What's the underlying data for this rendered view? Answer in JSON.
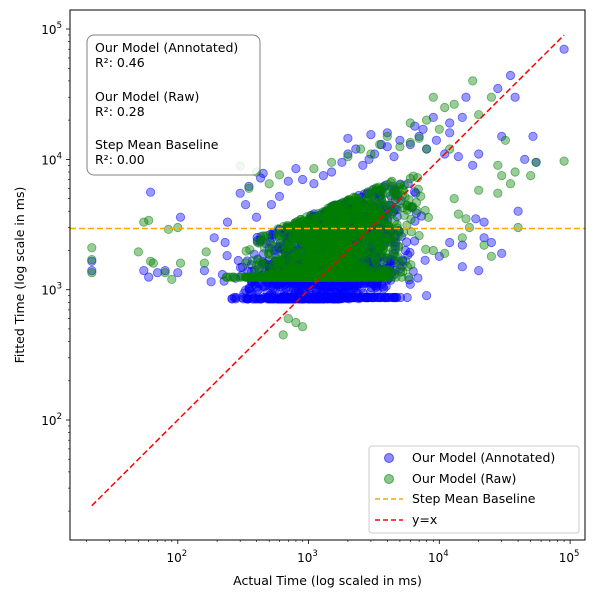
{
  "chart_data": {
    "type": "scatter",
    "title": "",
    "xlabel": "Actual Time (log scaled in ms)",
    "ylabel": "Fitted Time (log scale in ms)",
    "xscale": "log",
    "yscale": "log",
    "xlim": [
      15,
      130000
    ],
    "ylim": [
      12,
      140000
    ],
    "x_ticks": [
      {
        "value": 100,
        "base": "10",
        "exp": "2"
      },
      {
        "value": 1000,
        "base": "10",
        "exp": "3"
      },
      {
        "value": 10000,
        "base": "10",
        "exp": "4"
      },
      {
        "value": 100000,
        "base": "10",
        "exp": "5"
      }
    ],
    "y_ticks": [
      {
        "value": 100,
        "base": "10",
        "exp": "2"
      },
      {
        "value": 1000,
        "base": "10",
        "exp": "3"
      },
      {
        "value": 10000,
        "base": "10",
        "exp": "4"
      },
      {
        "value": 100000,
        "base": "10",
        "exp": "5"
      }
    ],
    "series": [
      {
        "name": "Our Model (Annotated)",
        "color": "#0000ff",
        "kind": "scatter",
        "points": [
          [
            22,
            1400
          ],
          [
            22,
            1650
          ],
          [
            55,
            1400
          ],
          [
            60,
            1250
          ],
          [
            62,
            5600
          ],
          [
            70,
            1350
          ],
          [
            80,
            1400
          ],
          [
            100,
            1350
          ],
          [
            105,
            3600
          ],
          [
            160,
            1400
          ],
          [
            180,
            1150
          ],
          [
            190,
            2500
          ],
          [
            230,
            2300
          ],
          [
            240,
            3300
          ],
          [
            300,
            5500
          ],
          [
            330,
            4500
          ],
          [
            350,
            6200
          ],
          [
            400,
            3600
          ],
          [
            430,
            7200
          ],
          [
            450,
            7800
          ],
          [
            520,
            4500
          ],
          [
            600,
            5200
          ],
          [
            700,
            6800
          ],
          [
            800,
            8500
          ],
          [
            900,
            7000
          ],
          [
            1100,
            6500
          ],
          [
            1300,
            7500
          ],
          [
            1500,
            8000
          ],
          [
            1800,
            9500
          ],
          [
            2000,
            11000
          ],
          [
            2300,
            12000
          ],
          [
            2600,
            9000
          ],
          [
            2900,
            10000
          ],
          [
            3200,
            11000
          ],
          [
            3600,
            13000
          ],
          [
            4000,
            12500
          ],
          [
            4500,
            10500
          ],
          [
            5000,
            14000
          ],
          [
            6000,
            13000
          ],
          [
            7000,
            15000
          ],
          [
            8000,
            12000
          ],
          [
            9500,
            14000
          ],
          [
            11000,
            11000
          ],
          [
            12000,
            16000
          ],
          [
            14000,
            10500
          ],
          [
            16000,
            30000
          ],
          [
            18000,
            9000
          ],
          [
            20000,
            11000
          ],
          [
            22000,
            2500
          ],
          [
            25000,
            2300
          ],
          [
            28000,
            35000
          ],
          [
            30000,
            15000
          ],
          [
            35000,
            44000
          ],
          [
            38000,
            30000
          ],
          [
            40000,
            4000
          ],
          [
            45000,
            10000
          ],
          [
            52000,
            15000
          ],
          [
            55000,
            9500
          ],
          [
            90000,
            70000
          ],
          [
            6500,
            18000
          ],
          [
            4000,
            16000
          ],
          [
            3000,
            15500
          ],
          [
            2000,
            14500
          ],
          [
            7500,
            17000
          ],
          [
            9000,
            21000
          ],
          [
            12000,
            19000
          ],
          [
            15000,
            21000
          ],
          [
            19000,
            3500
          ],
          [
            22000,
            3300
          ],
          [
            10000,
            1800
          ],
          [
            15000,
            2200
          ],
          [
            20000,
            1400
          ],
          [
            30000,
            1900
          ],
          [
            12000,
            2300
          ],
          [
            8000,
            900
          ],
          [
            6000,
            1100
          ],
          [
            15000,
            1500
          ],
          [
            5500,
            2000
          ]
        ],
        "cluster": {
          "x_range": [
            200,
            10000
          ],
          "y_range": [
            850,
            9000
          ],
          "count": 1500,
          "seed": 7
        }
      },
      {
        "name": "Our Model (Raw)",
        "color": "#008000",
        "kind": "scatter",
        "points": [
          [
            22,
            2100
          ],
          [
            22,
            1700
          ],
          [
            22,
            1350
          ],
          [
            50,
            1950
          ],
          [
            55,
            3300
          ],
          [
            60,
            3400
          ],
          [
            62,
            1650
          ],
          [
            65,
            1600
          ],
          [
            80,
            1350
          ],
          [
            85,
            2900
          ],
          [
            90,
            1200
          ],
          [
            100,
            3000
          ],
          [
            105,
            1600
          ],
          [
            160,
            1600
          ],
          [
            165,
            1950
          ],
          [
            300,
            8900
          ],
          [
            350,
            6000
          ],
          [
            400,
            8000
          ],
          [
            500,
            6500
          ],
          [
            600,
            7600
          ],
          [
            640,
            450
          ],
          [
            700,
            600
          ],
          [
            800,
            560
          ],
          [
            900,
            520
          ],
          [
            1100,
            8500
          ],
          [
            1500,
            9500
          ],
          [
            2000,
            10500
          ],
          [
            2500,
            12000
          ],
          [
            3000,
            11000
          ],
          [
            3500,
            13000
          ],
          [
            4000,
            15000
          ],
          [
            5000,
            12500
          ],
          [
            6000,
            13500
          ],
          [
            7000,
            14500
          ],
          [
            8000,
            12000
          ],
          [
            9000,
            30000
          ],
          [
            10000,
            17000
          ],
          [
            11000,
            25000
          ],
          [
            12000,
            12000
          ],
          [
            13000,
            26500
          ],
          [
            15000,
            2500
          ],
          [
            16000,
            3500
          ],
          [
            18000,
            40000
          ],
          [
            20000,
            22000
          ],
          [
            22000,
            2200
          ],
          [
            25000,
            30000
          ],
          [
            28000,
            9000
          ],
          [
            30000,
            7500
          ],
          [
            32000,
            14000
          ],
          [
            38000,
            8000
          ],
          [
            40000,
            3000
          ],
          [
            50000,
            7500
          ],
          [
            55000,
            9500
          ],
          [
            90000,
            9700
          ],
          [
            25000,
            1800
          ],
          [
            17000,
            3000
          ],
          [
            13000,
            5000
          ],
          [
            9000,
            2000
          ],
          [
            7000,
            2600
          ],
          [
            14000,
            3800
          ],
          [
            11000,
            1900
          ],
          [
            20000,
            5800
          ],
          [
            28000,
            5500
          ],
          [
            35000,
            6500
          ],
          [
            8000,
            20000
          ],
          [
            6000,
            19000
          ]
        ],
        "cluster": {
          "x_range": [
            200,
            10000
          ],
          "y_range": [
            1250,
            9000
          ],
          "count": 1500,
          "seed": 13
        }
      }
    ],
    "reference_lines": [
      {
        "name": "Step Mean Baseline",
        "kind": "hline",
        "y": 2950,
        "color": "#ffa500",
        "style": "dashed"
      },
      {
        "name": "y=x",
        "kind": "diagonal",
        "x_start": 22,
        "x_end": 90000,
        "color": "#ff0000",
        "style": "dashed"
      }
    ],
    "stats_box": [
      {
        "label": "Our Model (Annotated)",
        "value": "R²: 0.46"
      },
      {
        "label": "Our Model (Raw)",
        "value": "R²: 0.28"
      },
      {
        "label": "Step Mean Baseline",
        "value": "R²: 0.00"
      }
    ],
    "legend": {
      "position": "lower-right",
      "entries": [
        {
          "label": "Our Model (Annotated)",
          "marker": "circle",
          "color": "#0000ff"
        },
        {
          "label": "Our Model (Raw)",
          "marker": "circle",
          "color": "#008000"
        },
        {
          "label": "Step Mean Baseline",
          "marker": "dash",
          "color": "#ffa500"
        },
        {
          "label": "y=x",
          "marker": "dash",
          "color": "#ff0000"
        }
      ]
    }
  }
}
